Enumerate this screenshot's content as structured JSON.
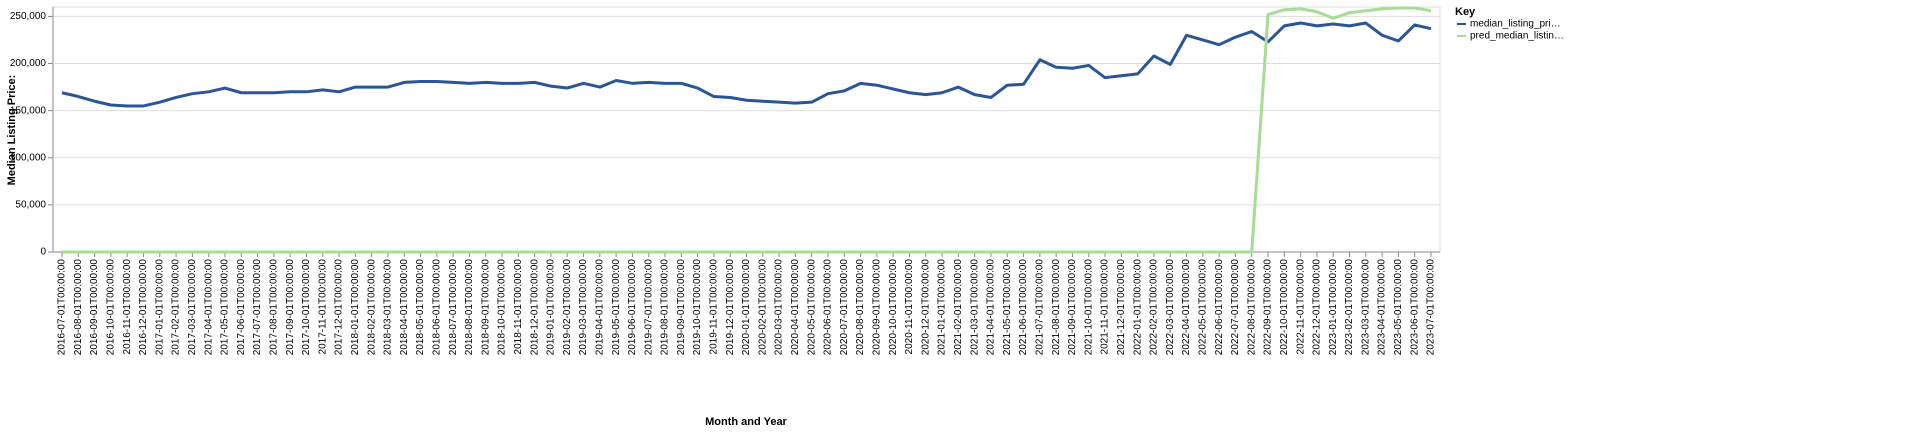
{
  "chart_data": {
    "type": "line",
    "x_label": "Month and Year",
    "y_label": "Median Listing Price:",
    "legend_title": "Key",
    "legend_position": "right",
    "grid": true,
    "ylim": [
      0,
      260000
    ],
    "yticks": [
      0,
      {
        "value": 50000,
        "label": "50,000"
      },
      {
        "value": 100000,
        "label": "100,000"
      },
      {
        "value": 150000,
        "label": "150,000"
      },
      {
        "value": 200000,
        "label": "200,000"
      },
      {
        "value": 250000,
        "label": "250,000"
      }
    ],
    "categories": [
      "2016-07-01T00:00:00",
      "2016-08-01T00:00:00",
      "2016-09-01T00:00:00",
      "2016-10-01T00:00:00",
      "2016-11-01T00:00:00",
      "2016-12-01T00:00:00",
      "2017-01-01T00:00:00",
      "2017-02-01T00:00:00",
      "2017-03-01T00:00:00",
      "2017-04-01T00:00:00",
      "2017-05-01T00:00:00",
      "2017-06-01T00:00:00",
      "2017-07-01T00:00:00",
      "2017-08-01T00:00:00",
      "2017-09-01T00:00:00",
      "2017-10-01T00:00:00",
      "2017-11-01T00:00:00",
      "2017-12-01T00:00:00",
      "2018-01-01T00:00:00",
      "2018-02-01T00:00:00",
      "2018-03-01T00:00:00",
      "2018-04-01T00:00:00",
      "2018-05-01T00:00:00",
      "2018-06-01T00:00:00",
      "2018-07-01T00:00:00",
      "2018-08-01T00:00:00",
      "2018-09-01T00:00:00",
      "2018-10-01T00:00:00",
      "2018-11-01T00:00:00",
      "2018-12-01T00:00:00",
      "2019-01-01T00:00:00",
      "2019-02-01T00:00:00",
      "2019-03-01T00:00:00",
      "2019-04-01T00:00:00",
      "2019-05-01T00:00:00",
      "2019-06-01T00:00:00",
      "2019-07-01T00:00:00",
      "2019-08-01T00:00:00",
      "2019-09-01T00:00:00",
      "2019-10-01T00:00:00",
      "2019-11-01T00:00:00",
      "2019-12-01T00:00:00",
      "2020-01-01T00:00:00",
      "2020-02-01T00:00:00",
      "2020-03-01T00:00:00",
      "2020-04-01T00:00:00",
      "2020-05-01T00:00:00",
      "2020-06-01T00:00:00",
      "2020-07-01T00:00:00",
      "2020-08-01T00:00:00",
      "2020-09-01T00:00:00",
      "2020-10-01T00:00:00",
      "2020-11-01T00:00:00",
      "2020-12-01T00:00:00",
      "2021-01-01T00:00:00",
      "2021-02-01T00:00:00",
      "2021-03-01T00:00:00",
      "2021-04-01T00:00:00",
      "2021-05-01T00:00:00",
      "2021-06-01T00:00:00",
      "2021-07-01T00:00:00",
      "2021-08-01T00:00:00",
      "2021-09-01T00:00:00",
      "2021-10-01T00:00:00",
      "2021-11-01T00:00:00",
      "2021-12-01T00:00:00",
      "2022-01-01T00:00:00",
      "2022-02-01T00:00:00",
      "2022-03-01T00:00:00",
      "2022-04-01T00:00:00",
      "2022-05-01T00:00:00",
      "2022-06-01T00:00:00",
      "2022-07-01T00:00:00",
      "2022-08-01T00:00:00",
      "2022-09-01T00:00:00",
      "2022-10-01T00:00:00",
      "2022-11-01T00:00:00",
      "2022-12-01T00:00:00",
      "2023-01-01T00:00:00",
      "2023-02-01T00:00:00",
      "2023-03-01T00:00:00",
      "2023-04-01T00:00:00",
      "2023-05-01T00:00:00",
      "2023-06-01T00:00:00",
      "2023-07-01T00:00:00"
    ],
    "series": [
      {
        "name": "median_listing_pri…",
        "color": "#2a5599",
        "values": [
          169000,
          165000,
          160000,
          156000,
          155000,
          155000,
          159000,
          164000,
          168000,
          170000,
          174000,
          169000,
          169000,
          169000,
          170000,
          170000,
          172000,
          170000,
          175000,
          175000,
          175000,
          180000,
          181000,
          181000,
          180000,
          179000,
          180000,
          179000,
          179000,
          180000,
          176000,
          174000,
          179000,
          175000,
          182000,
          179000,
          180000,
          179000,
          179000,
          174000,
          165000,
          164000,
          161000,
          160000,
          159000,
          158000,
          159000,
          168000,
          171000,
          179000,
          177000,
          173000,
          169000,
          167000,
          169000,
          175000,
          167000,
          164000,
          177000,
          178000,
          204000,
          196000,
          195000,
          198000,
          185000,
          187000,
          189000,
          208000,
          199000,
          230000,
          225000,
          220000,
          228000,
          234000,
          223000,
          240000,
          243000,
          240000,
          242000,
          240000,
          243000,
          230000,
          224000,
          241000,
          237000
        ]
      },
      {
        "name": "pred_median_listin…",
        "color": "#a6dc94",
        "values": [
          0,
          0,
          0,
          0,
          0,
          0,
          0,
          0,
          0,
          0,
          0,
          0,
          0,
          0,
          0,
          0,
          0,
          0,
          0,
          0,
          0,
          0,
          0,
          0,
          0,
          0,
          0,
          0,
          0,
          0,
          0,
          0,
          0,
          0,
          0,
          0,
          0,
          0,
          0,
          0,
          0,
          0,
          0,
          0,
          0,
          0,
          0,
          0,
          0,
          0,
          0,
          0,
          0,
          0,
          0,
          0,
          0,
          0,
          0,
          0,
          0,
          0,
          0,
          0,
          0,
          0,
          0,
          0,
          0,
          0,
          0,
          0,
          0,
          0,
          252000,
          257000,
          258000,
          255000,
          248000,
          254000,
          256000,
          258000,
          259000,
          259000,
          256000
        ]
      }
    ]
  }
}
